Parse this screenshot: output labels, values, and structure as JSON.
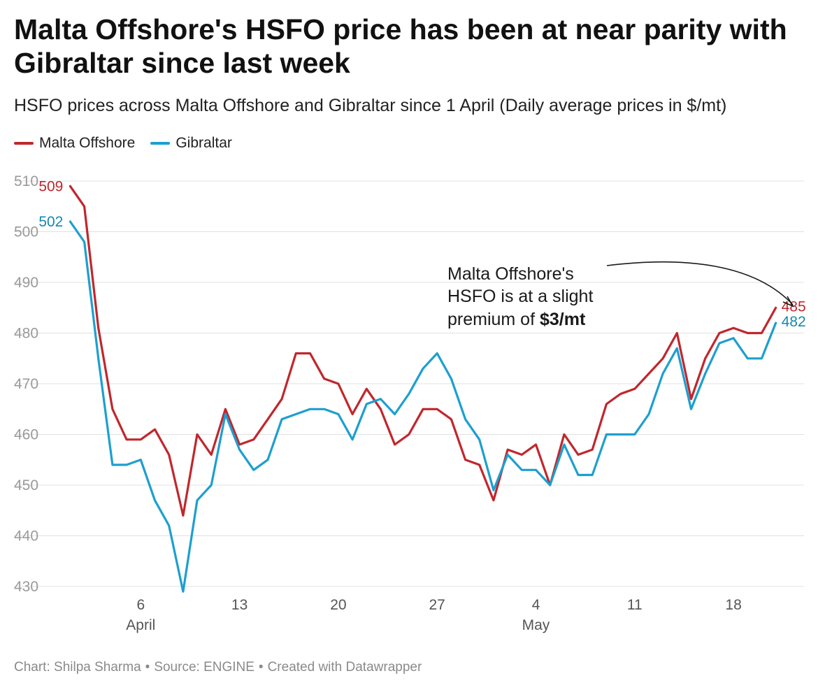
{
  "title": "Malta Offshore's HSFO price has been at near parity with Gibraltar since last week",
  "subtitle": "HSFO prices across Malta Offshore and Gibraltar since 1 April (Daily average prices in $/mt)",
  "colors": {
    "malta": "#c0272d",
    "gibraltar": "#1d9fcf",
    "gibraltar_label": "#1588b0",
    "grid": "#e0e0e0"
  },
  "annotation": {
    "line1": "Malta Offshore's",
    "line2": "HSFO is at a slight",
    "line3_prefix": "premium of ",
    "line3_bold": "$3/mt"
  },
  "footer": {
    "chart_by": "Chart: Shilpa Sharma",
    "source": "Source: ENGINE",
    "created": "Created with Datawrapper",
    "separator": "•"
  },
  "chart_data": {
    "type": "line",
    "title": "Malta Offshore's HSFO price has been at near parity with Gibraltar since last week",
    "subtitle": "HSFO prices across Malta Offshore and Gibraltar since 1 April (Daily average prices in $/mt)",
    "xlabel": "",
    "ylabel": "",
    "ylim": [
      430,
      510
    ],
    "yticks": [
      430,
      440,
      450,
      460,
      470,
      480,
      490,
      500,
      510
    ],
    "xlim": [
      "2024-03-30",
      "2024-05-23"
    ],
    "x_ticks": [
      {
        "date": "2024-04-06",
        "label": "6",
        "month": "April"
      },
      {
        "date": "2024-04-13",
        "label": "13",
        "month": ""
      },
      {
        "date": "2024-04-20",
        "label": "20",
        "month": ""
      },
      {
        "date": "2024-04-27",
        "label": "27",
        "month": ""
      },
      {
        "date": "2024-05-04",
        "label": "4",
        "month": "May"
      },
      {
        "date": "2024-05-11",
        "label": "11",
        "month": ""
      },
      {
        "date": "2024-05-18",
        "label": "18",
        "month": ""
      }
    ],
    "grid": true,
    "legend": "top-left",
    "x": [
      "2024-04-01",
      "2024-04-02",
      "2024-04-03",
      "2024-04-04",
      "2024-04-05",
      "2024-04-06",
      "2024-04-07",
      "2024-04-08",
      "2024-04-09",
      "2024-04-10",
      "2024-04-11",
      "2024-04-12",
      "2024-04-13",
      "2024-04-14",
      "2024-04-15",
      "2024-04-16",
      "2024-04-17",
      "2024-04-18",
      "2024-04-19",
      "2024-04-20",
      "2024-04-21",
      "2024-04-22",
      "2024-04-23",
      "2024-04-24",
      "2024-04-25",
      "2024-04-26",
      "2024-04-27",
      "2024-04-28",
      "2024-04-29",
      "2024-04-30",
      "2024-05-01",
      "2024-05-02",
      "2024-05-03",
      "2024-05-04",
      "2024-05-05",
      "2024-05-06",
      "2024-05-07",
      "2024-05-08",
      "2024-05-09",
      "2024-05-10",
      "2024-05-11",
      "2024-05-12",
      "2024-05-13",
      "2024-05-14",
      "2024-05-15",
      "2024-05-16",
      "2024-05-17",
      "2024-05-18",
      "2024-05-19",
      "2024-05-20",
      "2024-05-21"
    ],
    "series": [
      {
        "name": "Malta Offshore",
        "color": "#c0272d",
        "start_label": "509",
        "end_label": "485",
        "values": [
          509,
          505,
          481,
          465,
          459,
          459,
          461,
          456,
          444,
          460,
          456,
          465,
          458,
          459,
          463,
          467,
          476,
          476,
          471,
          470,
          464,
          469,
          465,
          458,
          460,
          465,
          465,
          463,
          455,
          454,
          447,
          457,
          456,
          458,
          450,
          460,
          456,
          457,
          466,
          468,
          469,
          472,
          475,
          480,
          467,
          475,
          480,
          481,
          480,
          480,
          485
        ]
      },
      {
        "name": "Gibraltar",
        "color": "#1d9fcf",
        "start_label": "502",
        "end_label": "482",
        "values": [
          502,
          498,
          475,
          454,
          454,
          455,
          447,
          442,
          429,
          447,
          450,
          464,
          457,
          453,
          455,
          463,
          464,
          465,
          465,
          464,
          459,
          466,
          467,
          464,
          468,
          473,
          476,
          471,
          463,
          459,
          449,
          456,
          453,
          453,
          450,
          458,
          452,
          452,
          460,
          460,
          460,
          464,
          472,
          477,
          465,
          472,
          478,
          479,
          475,
          475,
          482
        ]
      }
    ]
  }
}
